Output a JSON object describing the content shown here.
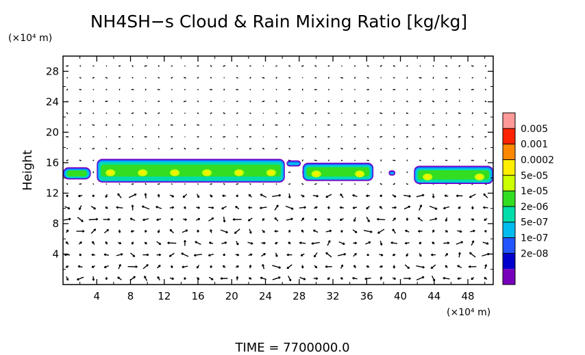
{
  "chart_data": {
    "type": "heatmap",
    "title": "NH4SH−s Cloud & Rain Mixing Ratio [kg/kg]",
    "ylabel": "Height",
    "y_unit": "(×10⁴ m)",
    "x_unit": "(×10⁴ m)",
    "footer": "TIME  =  7700000.0",
    "xlim": [
      0,
      51
    ],
    "ylim": [
      0,
      30
    ],
    "x_ticks": [
      4,
      8,
      12,
      16,
      20,
      24,
      28,
      32,
      36,
      40,
      44,
      48
    ],
    "y_ticks": [
      4,
      8,
      12,
      16,
      20,
      24,
      28
    ],
    "colorbar": {
      "labels": [
        "0.005",
        "0.001",
        "0.0002",
        "5e-05",
        "1e-05",
        "2e-06",
        "5e-07",
        "1e-07",
        "2e-08"
      ],
      "colors": [
        "#ff9999",
        "#ff2200",
        "#ff8800",
        "#ffee00",
        "#ccff00",
        "#33dd22",
        "#00ddaa",
        "#00bbee",
        "#2255ff",
        "#0000cc",
        "#7700bb"
      ]
    },
    "cloud_layer": {
      "base_height": 13.4,
      "top_height": 16.5,
      "segments": [
        {
          "x_start": 0.0,
          "x_end": 3.3,
          "top": 15.4,
          "base": 13.8
        },
        {
          "x_start": 4.0,
          "x_end": 26.3,
          "top": 16.5,
          "base": 13.4
        },
        {
          "x_start": 26.5,
          "x_end": 28.2,
          "top": 16.3,
          "base": 15.5
        },
        {
          "x_start": 28.4,
          "x_end": 36.8,
          "top": 16.0,
          "base": 13.6
        },
        {
          "x_start": 38.6,
          "x_end": 39.4,
          "top": 15.0,
          "base": 14.3
        },
        {
          "x_start": 41.6,
          "x_end": 51.0,
          "top": 15.6,
          "base": 13.2
        }
      ]
    },
    "wind_vectors": "velocity arrow field over full domain"
  }
}
